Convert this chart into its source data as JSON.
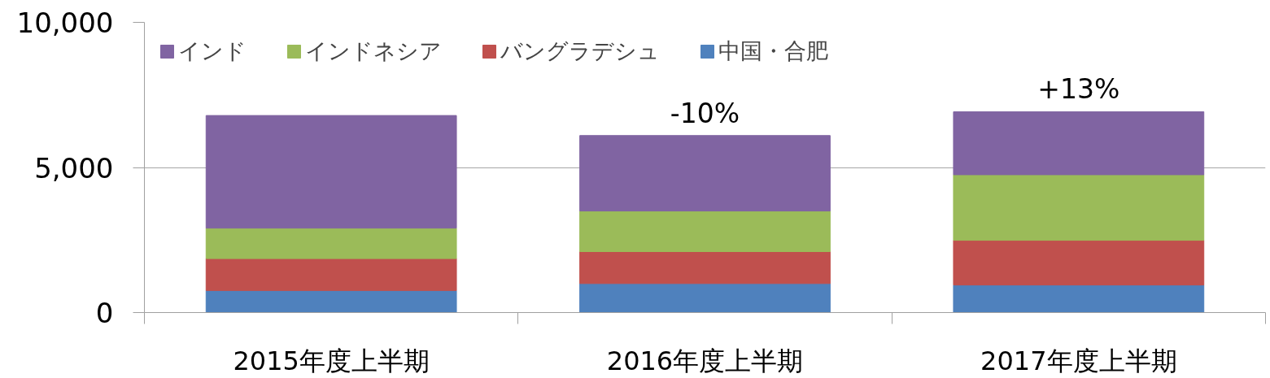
{
  "chart_data": {
    "type": "bar",
    "stacked": true,
    "categories": [
      "2015年度上半期",
      "2016年度上半期",
      "2017年度上半期"
    ],
    "series": [
      {
        "name": "中国・合肥",
        "color": "#4f81bd",
        "values": [
          760,
          1000,
          950
        ]
      },
      {
        "name": "バングラデシュ",
        "color": "#c0504d",
        "values": [
          1100,
          1100,
          1540
        ]
      },
      {
        "name": "インドネシア",
        "color": "#9bbb59",
        "values": [
          1050,
          1400,
          2260
        ]
      },
      {
        "name": "インド",
        "color": "#8064a2",
        "values": [
          3880,
          2600,
          2170
        ]
      }
    ],
    "ylim": [
      0,
      10000
    ],
    "yticks": [
      0,
      {
        "value": 5000,
        "label": "5,000"
      },
      {
        "value": 10000,
        "label": "10,000"
      }
    ],
    "grid": "y",
    "legend": "top left",
    "annotations": [
      {
        "text": "-10%",
        "x": "2016年度上半期",
        "y": 6100
      },
      {
        "text": "+13%",
        "x": "2017年度上半期",
        "y": 6920
      }
    ]
  }
}
